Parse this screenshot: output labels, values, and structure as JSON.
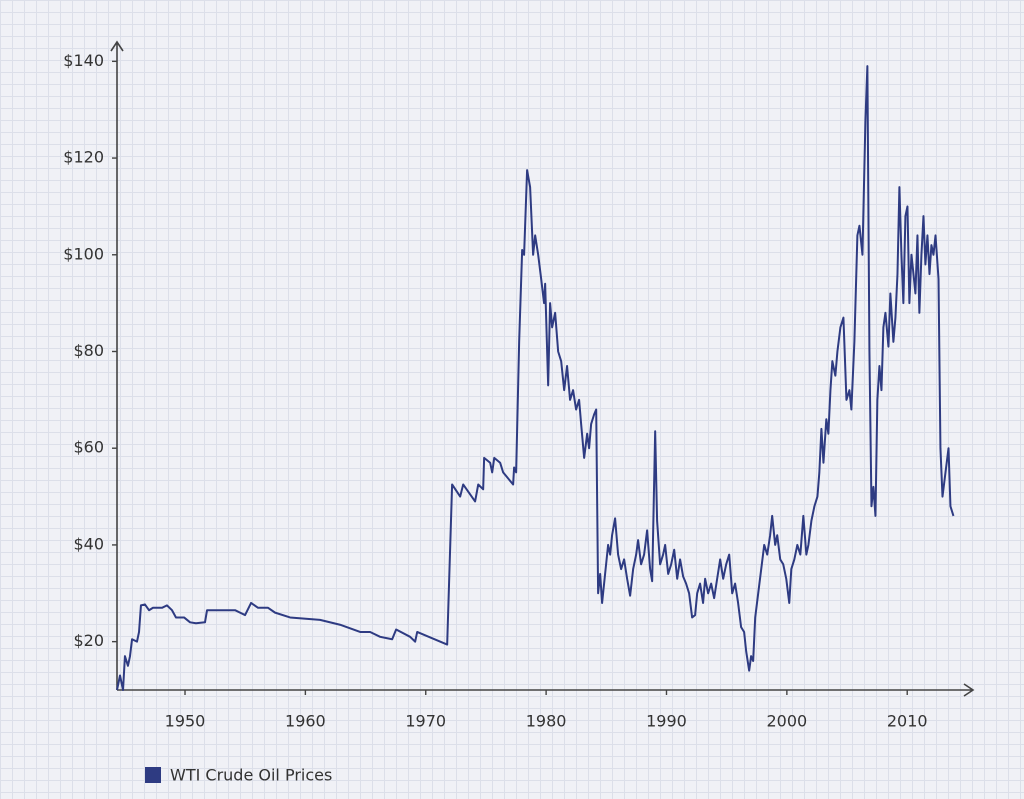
{
  "chart_data": {
    "type": "line",
    "xlim": [
      1944.35,
      2014.8
    ],
    "ylim": [
      10,
      144
    ],
    "xticks": [
      1950,
      1960,
      1970,
      1980,
      1990,
      2000,
      2010
    ],
    "yticks": [
      {
        "value": 20,
        "label": "$20"
      },
      {
        "value": 40,
        "label": "$40"
      },
      {
        "value": 60,
        "label": "$60"
      },
      {
        "value": 80,
        "label": "$80"
      },
      {
        "value": 100,
        "label": "$100"
      },
      {
        "value": 120,
        "label": "$120"
      },
      {
        "value": 140,
        "label": "$140"
      }
    ],
    "series": [
      {
        "name": "WTI Crude Oil Prices",
        "color": "#2e3b82",
        "x": [
          1944.35,
          1944.6,
          1944.85,
          1945.01,
          1945.26,
          1945.43,
          1945.6,
          1946.01,
          1946.18,
          1946.34,
          1946.67,
          1947.01,
          1947.34,
          1948.09,
          1948.5,
          1948.92,
          1949.25,
          1949.92,
          1950.42,
          1950.91,
          1951.66,
          1951.83,
          1953.08,
          1954.16,
          1954.57,
          1954.99,
          1955.49,
          1956.07,
          1956.9,
          1957.48,
          1958.73,
          1961.22,
          1962.88,
          1964.55,
          1965.38,
          1966.21,
          1967.21,
          1967.54,
          1968.7,
          1969.12,
          1969.29,
          1971.78,
          1972.19,
          1972.86,
          1973.11,
          1974.1,
          1974.36,
          1974.77,
          1974.85,
          1975.35,
          1975.52,
          1975.69,
          1976.18,
          1976.43,
          1977.26,
          1977.34,
          1977.51,
          1977.76,
          1978.01,
          1978.17,
          1978.42,
          1978.67,
          1978.92,
          1979.09,
          1979.34,
          1979.59,
          1979.83,
          1979.92,
          1980.17,
          1980.33,
          1980.5,
          1980.75,
          1981.0,
          1981.25,
          1981.5,
          1981.74,
          1981.99,
          1982.24,
          1982.49,
          1982.74,
          1982.91,
          1983.16,
          1983.41,
          1983.57,
          1983.74,
          1983.99,
          1984.16,
          1984.32,
          1984.49,
          1984.65,
          1984.9,
          1985.15,
          1985.32,
          1985.48,
          1985.73,
          1985.98,
          1986.23,
          1986.48,
          1986.73,
          1986.98,
          1987.23,
          1987.48,
          1987.64,
          1987.89,
          1988.14,
          1988.39,
          1988.64,
          1988.81,
          1989.06,
          1989.22,
          1989.47,
          1989.72,
          1989.89,
          1990.14,
          1990.39,
          1990.64,
          1990.89,
          1991.13,
          1991.38,
          1991.63,
          1991.88,
          1992.13,
          1992.38,
          1992.55,
          1992.79,
          1993.04,
          1993.21,
          1993.46,
          1993.71,
          1993.96,
          1994.21,
          1994.46,
          1994.71,
          1994.96,
          1995.21,
          1995.46,
          1995.7,
          1995.95,
          1996.2,
          1996.45,
          1996.62,
          1996.87,
          1997.03,
          1997.2,
          1997.37,
          1997.62,
          1997.87,
          1998.12,
          1998.37,
          1998.61,
          1998.78,
          1999.03,
          1999.2,
          1999.45,
          1999.7,
          1999.95,
          2000.2,
          2000.37,
          2000.62,
          2000.87,
          2001.12,
          2001.37,
          2001.62,
          2001.79,
          2002.04,
          2002.29,
          2002.54,
          2002.7,
          2002.87,
          2003.04,
          2003.28,
          2003.45,
          2003.62,
          2003.78,
          2004.03,
          2004.2,
          2004.45,
          2004.7,
          2004.95,
          2005.2,
          2005.36,
          2005.61,
          2005.86,
          2006.03,
          2006.28,
          2006.53,
          2006.69,
          2006.86,
          2007.03,
          2007.19,
          2007.36,
          2007.52,
          2007.69,
          2007.86,
          2008.02,
          2008.19,
          2008.44,
          2008.6,
          2008.85,
          2009.02,
          2009.19,
          2009.35,
          2009.52,
          2009.68,
          2009.85,
          2010.02,
          2010.18,
          2010.35,
          2010.52,
          2010.68,
          2010.85,
          2011.01,
          2011.18,
          2011.35,
          2011.51,
          2011.68,
          2011.85,
          2012.01,
          2012.18,
          2012.35,
          2012.6,
          2012.76,
          2012.93,
          2013.18,
          2013.43,
          2013.59,
          2013.84
        ],
        "values": [
          10,
          13,
          10,
          17,
          15,
          17,
          20.5,
          20,
          22,
          27.5,
          27.7,
          26.5,
          27,
          27,
          27.5,
          26.5,
          25,
          25,
          24,
          23.8,
          24,
          26.5,
          26.5,
          26.5,
          26,
          25.5,
          28,
          27,
          27,
          26,
          25,
          24.5,
          23.5,
          22,
          22,
          21,
          20.5,
          22.5,
          21,
          20,
          22,
          19.4,
          52.5,
          50,
          52.5,
          49,
          52.5,
          51.5,
          58,
          57,
          55,
          58,
          57,
          55,
          52.5,
          56,
          55,
          82,
          101,
          100,
          117.5,
          114,
          100,
          104,
          100,
          95,
          90,
          94,
          73,
          90,
          85,
          88,
          80,
          78,
          72,
          77,
          70,
          72,
          68,
          70,
          65,
          58,
          63,
          60,
          65,
          67,
          68,
          30,
          34,
          28,
          34,
          40,
          38,
          42,
          45.5,
          38,
          35,
          37,
          33,
          29.5,
          35,
          38,
          41,
          36,
          38,
          43,
          35,
          32.5,
          63.5,
          45,
          36,
          38,
          40,
          34,
          36,
          39,
          33,
          37,
          33.5,
          32,
          30,
          25,
          25.5,
          30,
          32,
          28,
          33,
          30,
          32,
          29,
          33,
          37,
          33,
          36,
          38,
          30,
          32,
          28,
          23,
          22,
          18,
          14,
          17,
          16,
          25,
          30,
          35,
          40,
          38,
          42,
          46,
          40,
          42,
          37,
          36,
          33,
          28,
          35,
          37,
          40,
          38,
          46,
          38,
          40,
          45,
          48,
          50,
          55,
          64,
          57,
          66,
          63,
          72,
          78,
          75,
          80,
          85,
          87,
          70,
          72,
          68,
          82,
          104,
          106,
          100,
          128,
          139,
          80,
          48,
          52,
          46,
          70,
          77,
          72,
          85,
          88,
          81,
          92,
          82,
          87,
          96,
          114,
          100,
          90,
          108,
          110,
          90,
          100,
          96,
          92,
          104,
          88,
          100,
          108,
          98,
          104,
          96,
          102,
          100,
          104,
          95,
          60,
          50,
          55,
          60,
          48,
          46
        ]
      }
    ]
  }
}
